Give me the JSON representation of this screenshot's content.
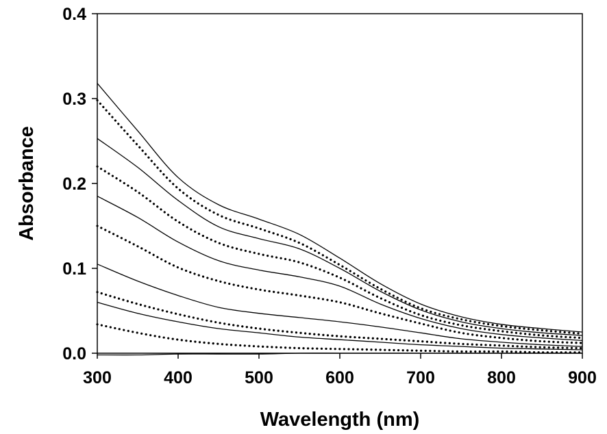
{
  "chart_data": {
    "type": "line",
    "title": "",
    "xlabel": "Wavelength (nm)",
    "ylabel": "Absorbance",
    "xlim": [
      300,
      900
    ],
    "ylim": [
      0.0,
      0.4
    ],
    "xticks": [
      300,
      400,
      500,
      600,
      700,
      800,
      900
    ],
    "xtick_labels": [
      "300",
      "400",
      "500",
      "600",
      "700",
      "800",
      "900"
    ],
    "yticks": [
      0.0,
      0.1,
      0.2,
      0.3,
      0.4
    ],
    "ytick_labels": [
      "0.0",
      "0.1",
      "0.2",
      "0.3",
      "0.4"
    ],
    "grid": false,
    "legend": "none",
    "line_color": "#000000",
    "series": [
      {
        "style": "solid",
        "x": [
          300,
          350,
          400,
          450,
          500,
          550,
          600,
          650,
          700,
          750,
          800,
          850,
          900
        ],
        "y": [
          0.318,
          0.262,
          0.207,
          0.175,
          0.158,
          0.14,
          0.112,
          0.082,
          0.058,
          0.043,
          0.034,
          0.029,
          0.025
        ]
      },
      {
        "style": "dotted",
        "x": [
          300,
          350,
          400,
          450,
          500,
          550,
          600,
          650,
          700,
          750,
          800,
          850,
          900
        ],
        "y": [
          0.298,
          0.245,
          0.194,
          0.163,
          0.147,
          0.13,
          0.104,
          0.076,
          0.053,
          0.04,
          0.032,
          0.027,
          0.023
        ]
      },
      {
        "style": "solid",
        "x": [
          300,
          350,
          400,
          450,
          500,
          550,
          600,
          650,
          700,
          750,
          800,
          850,
          900
        ],
        "y": [
          0.253,
          0.219,
          0.18,
          0.149,
          0.135,
          0.123,
          0.1,
          0.073,
          0.051,
          0.037,
          0.029,
          0.024,
          0.021
        ]
      },
      {
        "style": "dotted",
        "x": [
          300,
          350,
          400,
          450,
          500,
          550,
          600,
          650,
          700,
          750,
          800,
          850,
          900
        ],
        "y": [
          0.22,
          0.19,
          0.155,
          0.13,
          0.117,
          0.107,
          0.089,
          0.065,
          0.045,
          0.033,
          0.026,
          0.021,
          0.018
        ]
      },
      {
        "style": "solid",
        "x": [
          300,
          350,
          400,
          450,
          500,
          550,
          600,
          650,
          700,
          750,
          800,
          850,
          900
        ],
        "y": [
          0.185,
          0.16,
          0.131,
          0.109,
          0.098,
          0.09,
          0.079,
          0.058,
          0.041,
          0.029,
          0.022,
          0.018,
          0.015
        ]
      },
      {
        "style": "dotted",
        "x": [
          300,
          350,
          400,
          450,
          500,
          550,
          600,
          650,
          700,
          750,
          800,
          850,
          900
        ],
        "y": [
          0.15,
          0.126,
          0.101,
          0.085,
          0.075,
          0.068,
          0.06,
          0.047,
          0.035,
          0.024,
          0.018,
          0.014,
          0.012
        ]
      },
      {
        "style": "solid",
        "x": [
          300,
          350,
          400,
          450,
          500,
          550,
          600,
          650,
          700,
          750,
          800,
          850,
          900
        ],
        "y": [
          0.105,
          0.085,
          0.068,
          0.054,
          0.047,
          0.042,
          0.037,
          0.031,
          0.024,
          0.017,
          0.013,
          0.01,
          0.008
        ]
      },
      {
        "style": "dotted",
        "x": [
          300,
          350,
          400,
          450,
          500,
          550,
          600,
          650,
          700,
          750,
          800,
          850,
          900
        ],
        "y": [
          0.072,
          0.058,
          0.046,
          0.036,
          0.029,
          0.024,
          0.02,
          0.017,
          0.014,
          0.011,
          0.009,
          0.007,
          0.006
        ]
      },
      {
        "style": "solid",
        "x": [
          300,
          350,
          400,
          450,
          500,
          550,
          600,
          650,
          700,
          750,
          800,
          850,
          900
        ],
        "y": [
          0.06,
          0.047,
          0.037,
          0.029,
          0.024,
          0.019,
          0.016,
          0.013,
          0.01,
          0.008,
          0.006,
          0.005,
          0.004
        ]
      },
      {
        "style": "dotted",
        "x": [
          300,
          350,
          400,
          450,
          500,
          550,
          600,
          650,
          700,
          750,
          800,
          850,
          900
        ],
        "y": [
          0.034,
          0.024,
          0.016,
          0.011,
          0.008,
          0.006,
          0.005,
          0.004,
          0.003,
          0.002,
          0.002,
          0.001,
          0.001
        ]
      },
      {
        "style": "solid",
        "x": [
          300,
          350,
          400,
          450,
          500,
          550,
          600,
          650,
          700,
          750,
          800,
          850,
          900
        ],
        "y": [
          -0.002,
          -0.002,
          -0.001,
          -0.001,
          -0.001,
          0.0,
          0.0,
          0.0,
          0.0,
          0.0,
          0.0,
          0.0,
          0.0
        ]
      }
    ]
  }
}
